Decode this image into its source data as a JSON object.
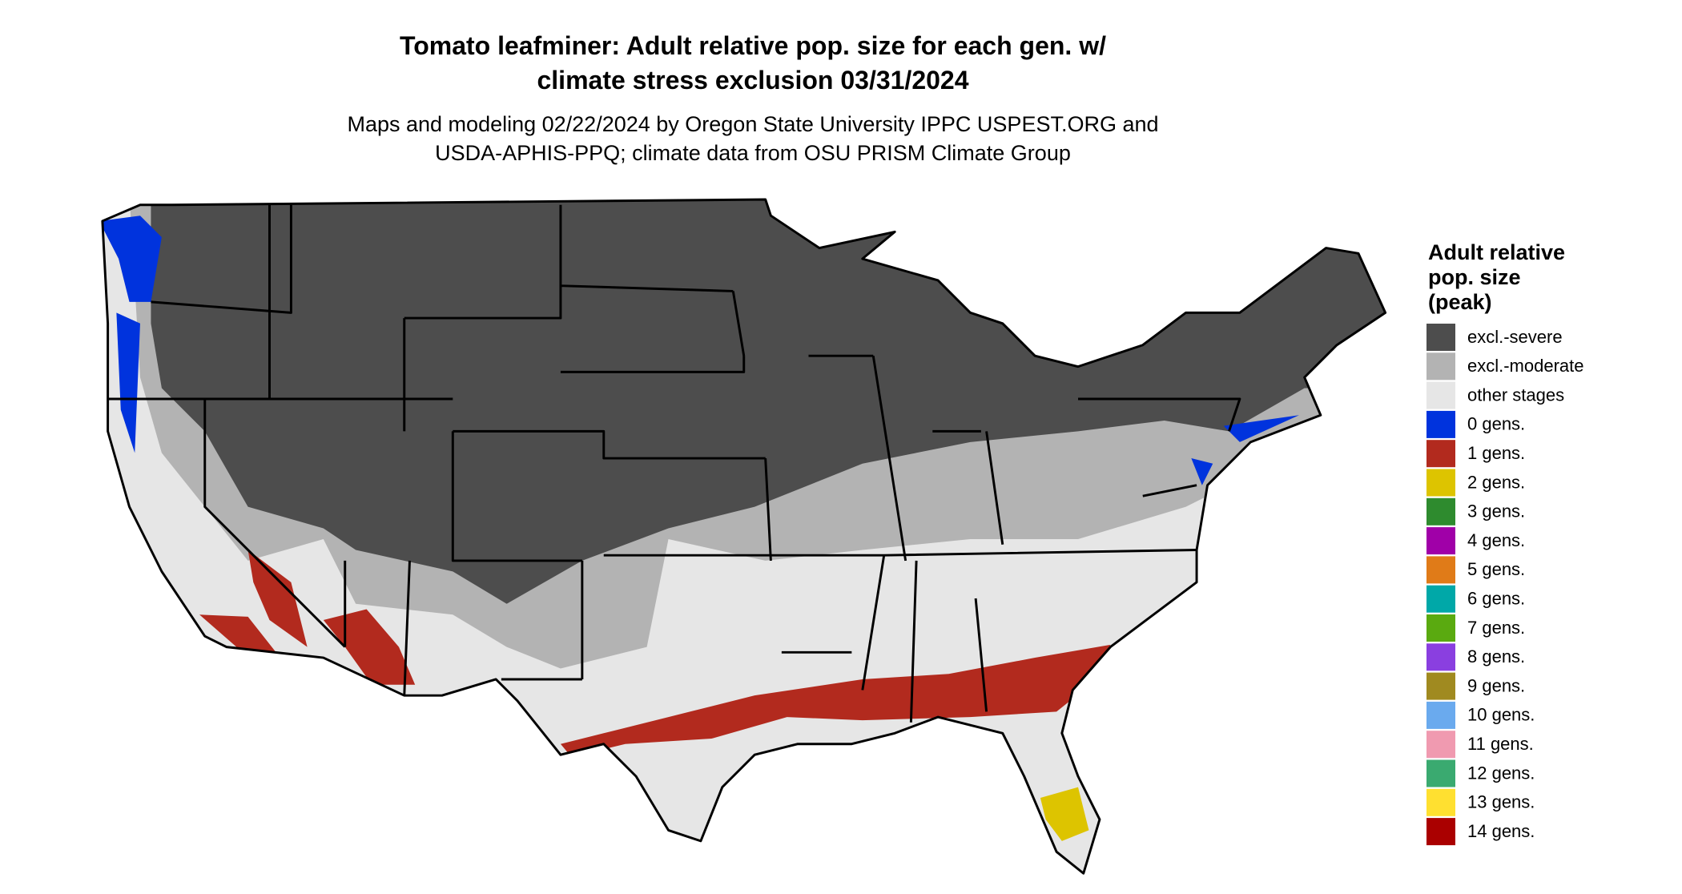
{
  "title": [
    "Tomato leafminer: Adult relative pop. size for each gen. w/",
    "climate stress exclusion 03/31/2024"
  ],
  "subtitle": [
    "Maps and modeling 02/22/2024 by Oregon State University IPPC USPEST.ORG and",
    "USDA-APHIS-PPQ; climate data from OSU PRISM Climate Group"
  ],
  "legend": {
    "title": [
      "Adult relative",
      "pop. size",
      "(peak)"
    ],
    "items": [
      {
        "label": "excl.-severe",
        "color": "#4d4d4d"
      },
      {
        "label": "excl.-moderate",
        "color": "#b3b3b3"
      },
      {
        "label": "other stages",
        "color": "#e6e6e6"
      },
      {
        "label": "0 gens.",
        "color": "#0033dd"
      },
      {
        "label": "1 gens.",
        "color": "#b22a1e"
      },
      {
        "label": "2 gens.",
        "color": "#ddc400"
      },
      {
        "label": "3 gens.",
        "color": "#2e8b2e"
      },
      {
        "label": "4 gens.",
        "color": "#a000a8"
      },
      {
        "label": "5 gens.",
        "color": "#e07b18"
      },
      {
        "label": "6 gens.",
        "color": "#00a8a8"
      },
      {
        "label": "7 gens.",
        "color": "#5aaa10"
      },
      {
        "label": "8 gens.",
        "color": "#8a3fe0"
      },
      {
        "label": "9 gens.",
        "color": "#a08a20"
      },
      {
        "label": "10 gens.",
        "color": "#6aaaee"
      },
      {
        "label": "11 gens.",
        "color": "#f09ab0"
      },
      {
        "label": "12 gens.",
        "color": "#3aaa70"
      },
      {
        "label": "13 gens.",
        "color": "#ffe030"
      },
      {
        "label": "14 gens.",
        "color": "#aa0000"
      }
    ]
  }
}
